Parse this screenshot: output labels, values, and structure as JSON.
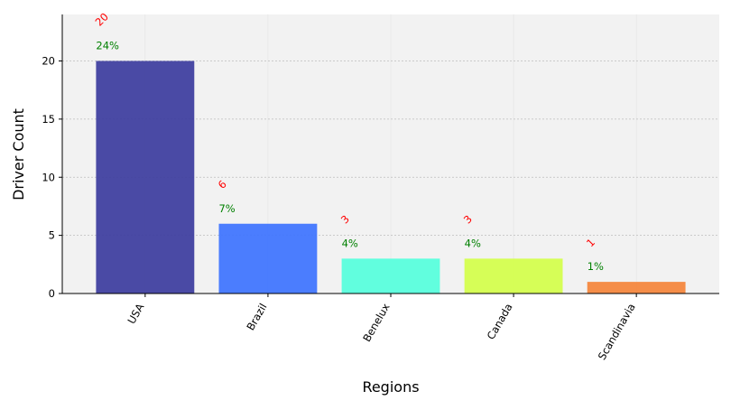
{
  "chart_data": {
    "type": "bar",
    "categories": [
      "USA",
      "Brazil",
      "Benelux",
      "Canada",
      "Scandinavia"
    ],
    "values": [
      20,
      6,
      3,
      3,
      1
    ],
    "percent_labels": [
      "24%",
      "7%",
      "4%",
      "4%",
      "1%"
    ],
    "bar_colors": [
      "#3c3c9e",
      "#3d73ff",
      "#55ffdc",
      "#d4ff4a",
      "#f5843a"
    ],
    "xlabel": "Regions",
    "ylabel": "Driver Count",
    "ylim": [
      0,
      24
    ],
    "yticks": [
      0,
      5,
      10,
      15,
      20
    ],
    "grid": true,
    "colors": {
      "plot_background": "#f2f2f2",
      "value_label": "#ff0000",
      "percent_label": "#008000",
      "grid": "#b0b0b0"
    }
  }
}
